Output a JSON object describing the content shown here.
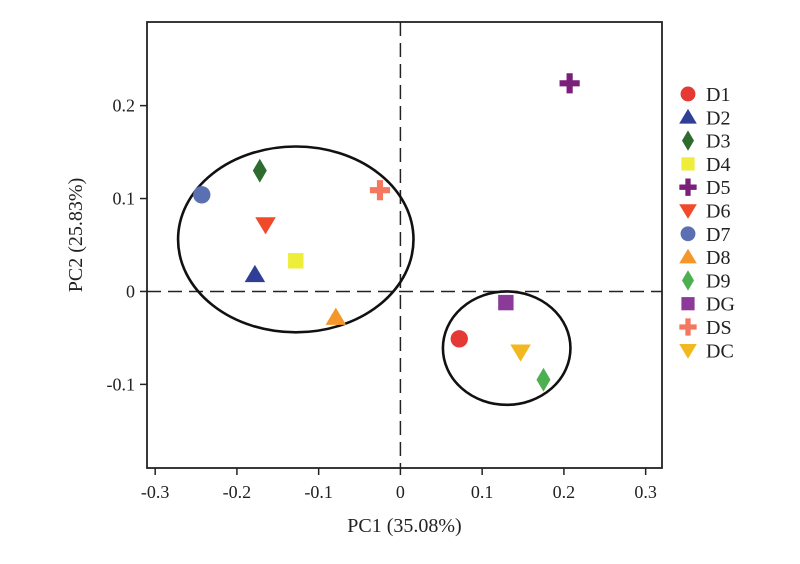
{
  "chart_data": {
    "type": "scatter",
    "title": "",
    "xlabel": "PC1 (35.08%)",
    "ylabel": "PC2 (25.83%)",
    "xlim": [
      -0.31,
      0.32
    ],
    "ylim": [
      -0.19,
      0.29
    ],
    "xticks": [
      -0.3,
      -0.2,
      -0.1,
      0,
      0.1,
      0.2,
      0.3
    ],
    "xtick_labels": [
      "-0.3",
      "-0.2",
      "-0.1",
      "0",
      "0.1",
      "0.2",
      "0.3"
    ],
    "yticks": [
      -0.1,
      0,
      0.1,
      0.2
    ],
    "ytick_labels": [
      "-0.1",
      "0",
      "0.1",
      "0.2"
    ],
    "grid": false,
    "reference_lines": "dashed lines at x = 0 and y = 0",
    "legend_position": "right",
    "series": [
      {
        "name": "D1",
        "marker": "circle",
        "color": "#e53935",
        "x": 0.072,
        "y": -0.051
      },
      {
        "name": "D2",
        "marker": "triangle-up",
        "color": "#2e3f95",
        "x": -0.178,
        "y": 0.018
      },
      {
        "name": "D3",
        "marker": "diamond",
        "color": "#2e6b2e",
        "x": -0.172,
        "y": 0.13
      },
      {
        "name": "D4",
        "marker": "square",
        "color": "#eded3a",
        "x": -0.128,
        "y": 0.033
      },
      {
        "name": "D5",
        "marker": "plus",
        "color": "#7a1f7a",
        "x": 0.207,
        "y": 0.224
      },
      {
        "name": "D6",
        "marker": "triangle-down",
        "color": "#f04a2a",
        "x": -0.165,
        "y": 0.072
      },
      {
        "name": "D7",
        "marker": "circle",
        "color": "#5b6fb3",
        "x": -0.243,
        "y": 0.104
      },
      {
        "name": "D8",
        "marker": "triangle-up",
        "color": "#f5962a",
        "x": -0.079,
        "y": -0.028
      },
      {
        "name": "D9",
        "marker": "diamond",
        "color": "#4caf50",
        "x": 0.175,
        "y": -0.095
      },
      {
        "name": "DG",
        "marker": "square",
        "color": "#8b3a9a",
        "x": 0.129,
        "y": -0.012
      },
      {
        "name": "DS",
        "marker": "plus",
        "color": "#f4775f",
        "x": -0.025,
        "y": 0.109
      },
      {
        "name": "DC",
        "marker": "triangle-down",
        "color": "#f2b81f",
        "x": 0.147,
        "y": -0.065
      }
    ],
    "ellipses": [
      {
        "cx": -0.128,
        "cy": 0.056,
        "rx": 0.144,
        "ry": 0.1
      },
      {
        "cx": 0.13,
        "cy": -0.061,
        "rx": 0.078,
        "ry": 0.061
      }
    ]
  }
}
